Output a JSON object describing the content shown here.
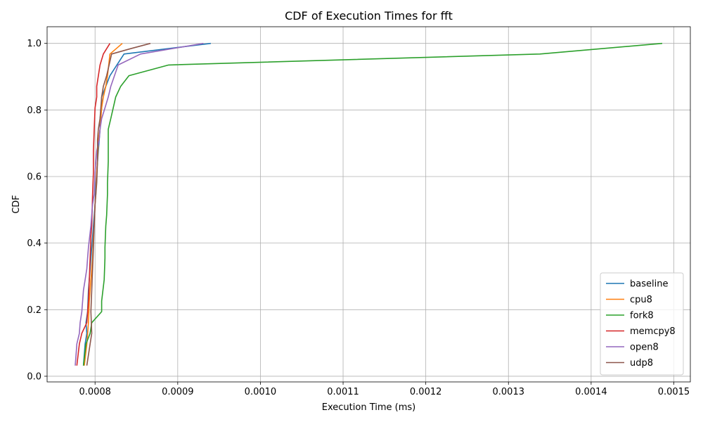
{
  "chart_data": {
    "type": "line",
    "title": "CDF of Execution Times for fft",
    "xlabel": "Execution Time (ms)",
    "ylabel": "CDF",
    "xlim": [
      0.000742,
      0.00152
    ],
    "ylim": [
      -0.017,
      1.05
    ],
    "xticks": [
      0.0008,
      0.0009,
      0.001,
      0.0011,
      0.0012,
      0.0013,
      0.0014,
      0.0015
    ],
    "xtick_labels": [
      "0.0008",
      "0.0009",
      "0.0010",
      "0.0011",
      "0.0012",
      "0.0013",
      "0.0014",
      "0.0015"
    ],
    "yticks": [
      0.0,
      0.2,
      0.4,
      0.6,
      0.8,
      1.0
    ],
    "ytick_labels": [
      "0.0",
      "0.2",
      "0.4",
      "0.6",
      "0.8",
      "1.0"
    ],
    "grid": true,
    "legend_position": "lower-right",
    "series": [
      {
        "name": "baseline",
        "color": "#1f77b4",
        "x": [
          0.000786,
          0.000787,
          0.000788,
          0.00079,
          0.000789,
          0.000791,
          0.000792,
          0.000794,
          0.000796,
          0.000798,
          0.0008,
          0.000801,
          0.000802,
          0.000804,
          0.000806,
          0.000806,
          0.000808,
          0.000808,
          0.000818,
          0.000835,
          0.00094
        ],
        "y": [
          0.032,
          0.065,
          0.097,
          0.129,
          0.161,
          0.194,
          0.258,
          0.323,
          0.387,
          0.452,
          0.516,
          0.581,
          0.613,
          0.677,
          0.742,
          0.774,
          0.806,
          0.839,
          0.903,
          0.968,
          1.0
        ]
      },
      {
        "name": "cpu8",
        "color": "#ff7f0e",
        "x": [
          0.000787,
          0.00079,
          0.000792,
          0.000793,
          0.000795,
          0.000796,
          0.000797,
          0.000798,
          0.000799,
          0.0008,
          0.000801,
          0.000802,
          0.000803,
          0.000804,
          0.000806,
          0.000808,
          0.00081,
          0.000813,
          0.000815,
          0.000818,
          0.000833
        ],
        "y": [
          0.032,
          0.097,
          0.161,
          0.226,
          0.29,
          0.323,
          0.355,
          0.419,
          0.452,
          0.516,
          0.548,
          0.613,
          0.645,
          0.71,
          0.742,
          0.806,
          0.839,
          0.871,
          0.903,
          0.968,
          1.0
        ]
      },
      {
        "name": "fork8",
        "color": "#2ca02c",
        "x": [
          0.000786,
          0.000789,
          0.000794,
          0.000796,
          0.000796,
          0.000808,
          0.000808,
          0.000811,
          0.000812,
          0.000812,
          0.000813,
          0.000814,
          0.000815,
          0.000815,
          0.000816,
          0.000816,
          0.000819,
          0.000825,
          0.000831,
          0.000841,
          0.000889,
          0.001338,
          0.001486
        ],
        "y": [
          0.032,
          0.097,
          0.129,
          0.161,
          0.161,
          0.194,
          0.226,
          0.29,
          0.355,
          0.387,
          0.452,
          0.484,
          0.548,
          0.581,
          0.645,
          0.742,
          0.774,
          0.839,
          0.871,
          0.903,
          0.935,
          0.968,
          1.0
        ]
      },
      {
        "name": "memcpy8",
        "color": "#d62728",
        "x": [
          0.000778,
          0.000781,
          0.000784,
          0.00079,
          0.000792,
          0.000793,
          0.000794,
          0.000795,
          0.000796,
          0.000797,
          0.000798,
          0.000798,
          0.000799,
          0.0008,
          0.000802,
          0.000802,
          0.000806,
          0.00081,
          0.000814,
          0.000818
        ],
        "y": [
          0.032,
          0.097,
          0.129,
          0.161,
          0.226,
          0.29,
          0.355,
          0.419,
          0.452,
          0.548,
          0.613,
          0.677,
          0.742,
          0.806,
          0.839,
          0.871,
          0.935,
          0.968,
          0.984,
          1.0
        ]
      },
      {
        "name": "open8",
        "color": "#9467bd",
        "x": [
          0.000776,
          0.000777,
          0.000778,
          0.000781,
          0.000782,
          0.000784,
          0.000786,
          0.000788,
          0.00079,
          0.000791,
          0.000792,
          0.000795,
          0.000797,
          0.000799,
          0.0008,
          0.000802,
          0.000805,
          0.000806,
          0.000808,
          0.000812,
          0.000816,
          0.000819,
          0.000828,
          0.000855,
          0.000931
        ],
        "y": [
          0.032,
          0.065,
          0.097,
          0.129,
          0.161,
          0.194,
          0.258,
          0.29,
          0.323,
          0.355,
          0.387,
          0.452,
          0.516,
          0.548,
          0.613,
          0.677,
          0.71,
          0.742,
          0.774,
          0.806,
          0.839,
          0.871,
          0.935,
          0.968,
          1.0
        ]
      },
      {
        "name": "udp8",
        "color": "#8c564b",
        "x": [
          0.00079,
          0.000794,
          0.000796,
          0.000795,
          0.000796,
          0.000797,
          0.000798,
          0.000799,
          0.0008,
          0.000801,
          0.000802,
          0.000803,
          0.000803,
          0.000804,
          0.000806,
          0.000808,
          0.00081,
          0.000814,
          0.000817,
          0.00082,
          0.000843,
          0.000867
        ],
        "y": [
          0.032,
          0.097,
          0.129,
          0.194,
          0.258,
          0.323,
          0.387,
          0.452,
          0.516,
          0.548,
          0.581,
          0.645,
          0.71,
          0.742,
          0.774,
          0.839,
          0.871,
          0.903,
          0.935,
          0.968,
          0.984,
          1.0
        ]
      }
    ]
  }
}
